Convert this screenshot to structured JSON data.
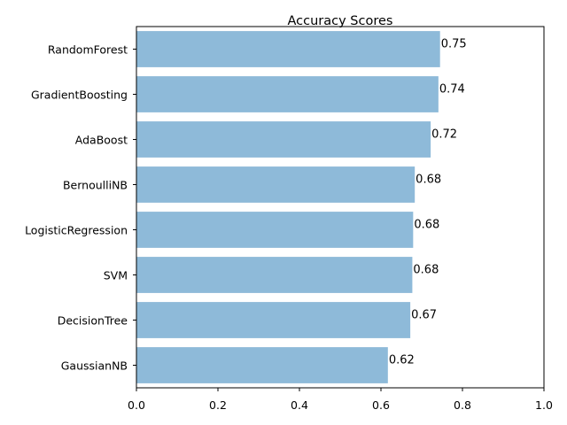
{
  "chart_data": {
    "type": "bar",
    "orientation": "horizontal",
    "title": "Accuracy Scores",
    "xlabel": "",
    "ylabel": "",
    "categories": [
      "RandomForest",
      "GradientBoosting",
      "AdaBoost",
      "BernoulliNB",
      "LogisticRegression",
      "SVM",
      "DecisionTree",
      "GaussianNB"
    ],
    "values": [
      0.745,
      0.741,
      0.722,
      0.683,
      0.679,
      0.677,
      0.672,
      0.617
    ],
    "value_labels": [
      "0.75",
      "0.74",
      "0.72",
      "0.68",
      "0.68",
      "0.68",
      "0.67",
      "0.62"
    ],
    "xlim": [
      0.0,
      1.0
    ],
    "xticks": [
      0.0,
      0.2,
      0.4,
      0.6,
      0.8,
      1.0
    ],
    "xtick_labels": [
      "0.0",
      "0.2",
      "0.4",
      "0.6",
      "0.8",
      "1.0"
    ],
    "grid": false,
    "legend": "none",
    "bar_color": "#8ebad9"
  }
}
